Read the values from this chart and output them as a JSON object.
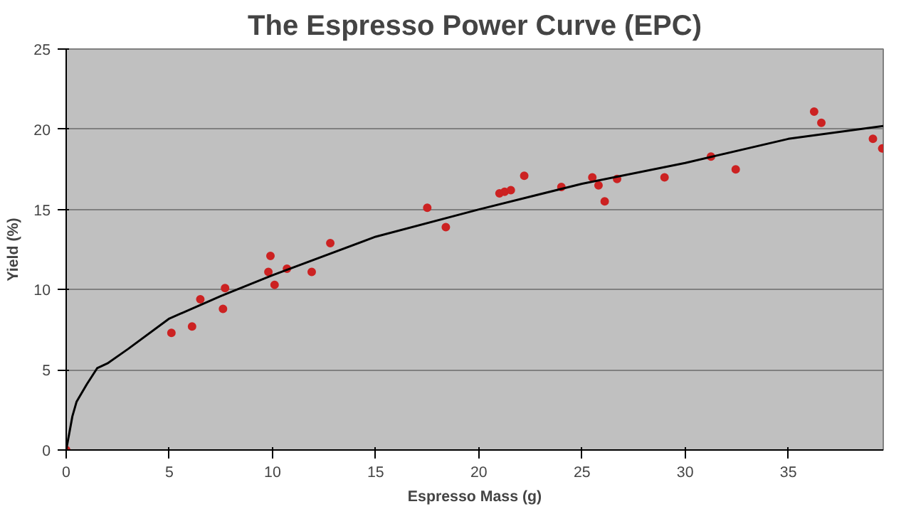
{
  "chart_data": {
    "type": "scatter",
    "title": "The Espresso Power Curve (EPC)",
    "xlabel": "Espresso Mass (g)",
    "ylabel": "Yield (%)",
    "xlim": [
      0,
      39.6
    ],
    "ylim": [
      0,
      25
    ],
    "xticks": [
      0,
      5,
      10,
      15,
      20,
      25,
      30,
      35
    ],
    "yticks": [
      0,
      5,
      10,
      15,
      20,
      25
    ],
    "grid": "y",
    "marker": "circle",
    "series": [
      {
        "color": "#cc2222",
        "x": [
          0,
          5.1,
          6.1,
          6.5,
          7.6,
          7.7,
          9.8,
          9.9,
          10.1,
          10.7,
          11.9,
          12.8,
          17.5,
          18.4,
          21.0,
          21.25,
          21.55,
          22.2,
          24.0,
          25.5,
          25.8,
          26.1,
          26.7,
          29.0,
          31.25,
          32.45,
          36.25,
          36.6,
          39.1,
          39.55
        ],
        "values": [
          0,
          7.3,
          7.7,
          9.4,
          8.8,
          10.1,
          11.1,
          12.1,
          10.3,
          11.3,
          11.1,
          12.9,
          15.1,
          13.9,
          16.0,
          16.1,
          16.2,
          17.1,
          16.4,
          17.0,
          16.5,
          15.5,
          16.9,
          17.0,
          18.3,
          17.5,
          21.1,
          20.4,
          19.4,
          18.8
        ]
      },
      {
        "type": "line",
        "marker": "none",
        "color": "#000000",
        "x": [
          0,
          0.3,
          0.5,
          1,
          1.5,
          2,
          3,
          5,
          7.5,
          10,
          15,
          20,
          25,
          30,
          35,
          39.6
        ],
        "values": [
          0,
          2.1,
          3.0,
          4.1,
          5.1,
          5.4,
          6.3,
          8.2,
          9.6,
          10.9,
          13.3,
          15.0,
          16.6,
          17.9,
          19.4,
          20.2
        ]
      }
    ]
  }
}
